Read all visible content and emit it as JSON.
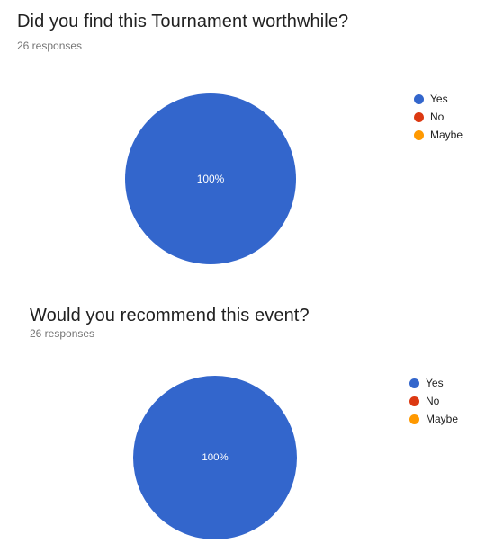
{
  "questions": [
    {
      "title": "Did you find this Tournament worthwhile?",
      "responses_text": "26 responses"
    },
    {
      "title": "Would you recommend this event?",
      "responses_text": "26 responses"
    }
  ],
  "chart_data": [
    {
      "type": "pie",
      "title": "Did you find this Tournament worthwhile?",
      "labels": [
        "Yes",
        "No",
        "Maybe"
      ],
      "values": [
        100,
        0,
        0
      ],
      "colors": [
        "#3366cc",
        "#dc3912",
        "#ff9900"
      ],
      "data_labels": [
        "100%",
        "",
        ""
      ],
      "legend": "right"
    },
    {
      "type": "pie",
      "title": "Would you recommend this event?",
      "labels": [
        "Yes",
        "No",
        "Maybe"
      ],
      "values": [
        100,
        0,
        0
      ],
      "colors": [
        "#3366cc",
        "#dc3912",
        "#ff9900"
      ],
      "data_labels": [
        "100%",
        "",
        ""
      ],
      "legend": "right"
    }
  ]
}
